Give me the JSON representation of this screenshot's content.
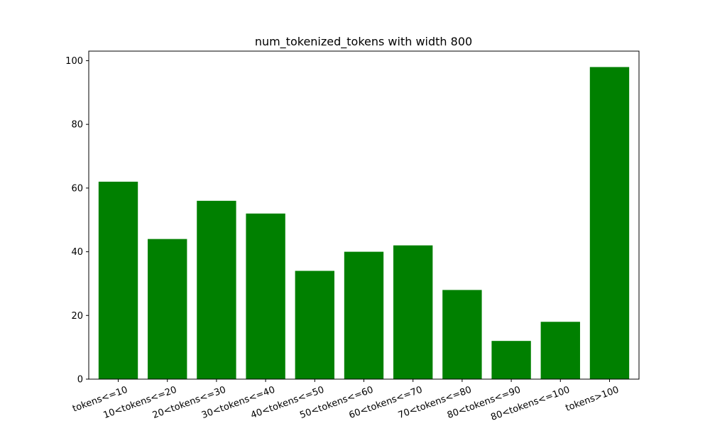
{
  "chart_data": {
    "type": "bar",
    "title": "num_tokenized_tokens with width 800",
    "xlabel": "",
    "ylabel": "",
    "categories": [
      "tokens<=10",
      "10<tokens<=20",
      "20<tokens<=30",
      "30<tokens<=40",
      "40<tokens<=50",
      "50<tokens<=60",
      "60<tokens<=70",
      "70<tokens<=80",
      "80<tokens<=90",
      "80<tokens<=100",
      "tokens>100"
    ],
    "values": [
      62,
      44,
      56,
      52,
      34,
      40,
      42,
      28,
      12,
      18,
      98
    ],
    "ylim": [
      0,
      103
    ],
    "yticks": [
      0,
      20,
      40,
      60,
      80,
      100
    ],
    "bar_color": "#008000",
    "grid": false,
    "legend": "none"
  }
}
